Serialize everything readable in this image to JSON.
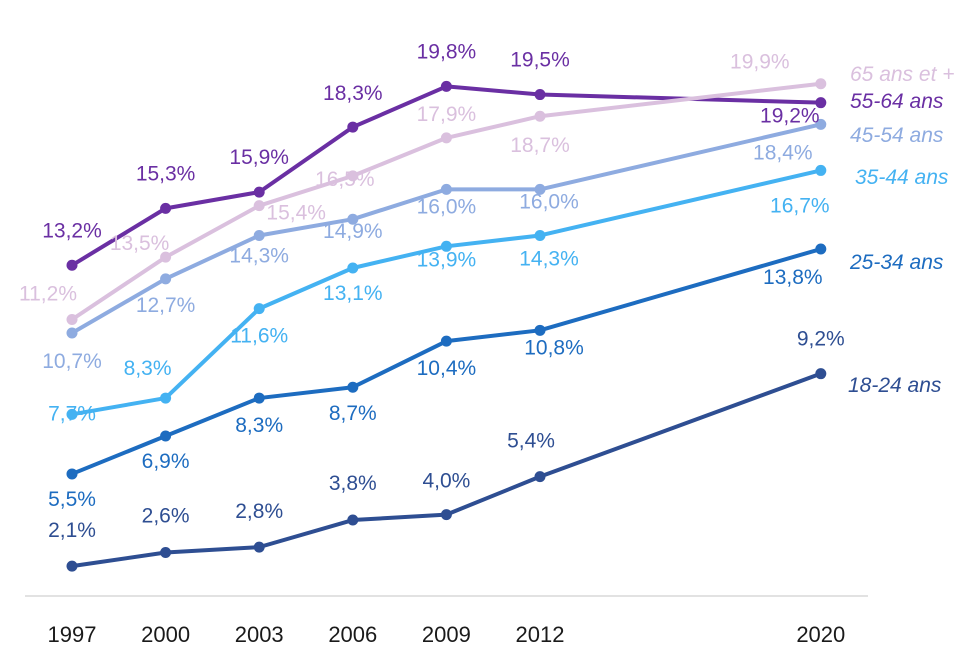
{
  "chart_data": {
    "type": "line",
    "title": "",
    "xlabel": "",
    "ylabel": "",
    "x": [
      1997,
      2000,
      2003,
      2006,
      2009,
      2012,
      2020
    ],
    "x_labels": [
      "1997",
      "2000",
      "2003",
      "2006",
      "2009",
      "2012",
      "2020"
    ],
    "ylim": [
      0,
      22
    ],
    "grid": false,
    "legend": "right, inline at line ends",
    "series": [
      {
        "name": "18-24 ans",
        "color": "#2E4E92",
        "values": [
          2.1,
          2.6,
          2.8,
          3.8,
          4.0,
          5.4,
          9.2
        ],
        "labels": [
          "2,1%",
          "2,6%",
          "2,8%",
          "3,8%",
          "4,0%",
          "5,4%",
          "9,2%"
        ]
      },
      {
        "name": "25-34 ans",
        "color": "#1D6CC0",
        "values": [
          5.5,
          6.9,
          8.3,
          8.7,
          10.4,
          10.8,
          13.8
        ],
        "labels": [
          "5,5%",
          "6,9%",
          "8,3%",
          "8,7%",
          "10,4%",
          "10,8%",
          "13,8%"
        ]
      },
      {
        "name": "35-44 ans",
        "color": "#44B2F2",
        "values": [
          7.7,
          8.3,
          11.6,
          13.1,
          13.9,
          14.3,
          16.7
        ],
        "labels": [
          "7,7%",
          "8,3%",
          "11,6%",
          "13,1%",
          "13,9%",
          "14,3%",
          "16,7%"
        ]
      },
      {
        "name": "45-54 ans",
        "color": "#8EABE0",
        "values": [
          10.7,
          12.7,
          14.3,
          14.9,
          16.0,
          16.0,
          18.4
        ],
        "labels": [
          "10,7%",
          "12,7%",
          "14,3%",
          "14,9%",
          "16,0%",
          "16,0%",
          "18,4%"
        ]
      },
      {
        "name": "55-64 ans",
        "color": "#6A2FA3",
        "values": [
          13.2,
          15.3,
          15.9,
          18.3,
          19.8,
          19.5,
          19.2
        ],
        "labels": [
          "13,2%",
          "15,3%",
          "15,9%",
          "18,3%",
          "19,8%",
          "19,5%",
          "19,2%"
        ]
      },
      {
        "name": "65 ans et +",
        "color": "#DAC0DE",
        "values": [
          11.2,
          13.5,
          15.4,
          16.5,
          17.9,
          18.7,
          19.9
        ],
        "labels": [
          "11,2%",
          "13,5%",
          "15,4%",
          "16,5%",
          "17,9%",
          "18,7%",
          "19,9%"
        ]
      }
    ]
  }
}
